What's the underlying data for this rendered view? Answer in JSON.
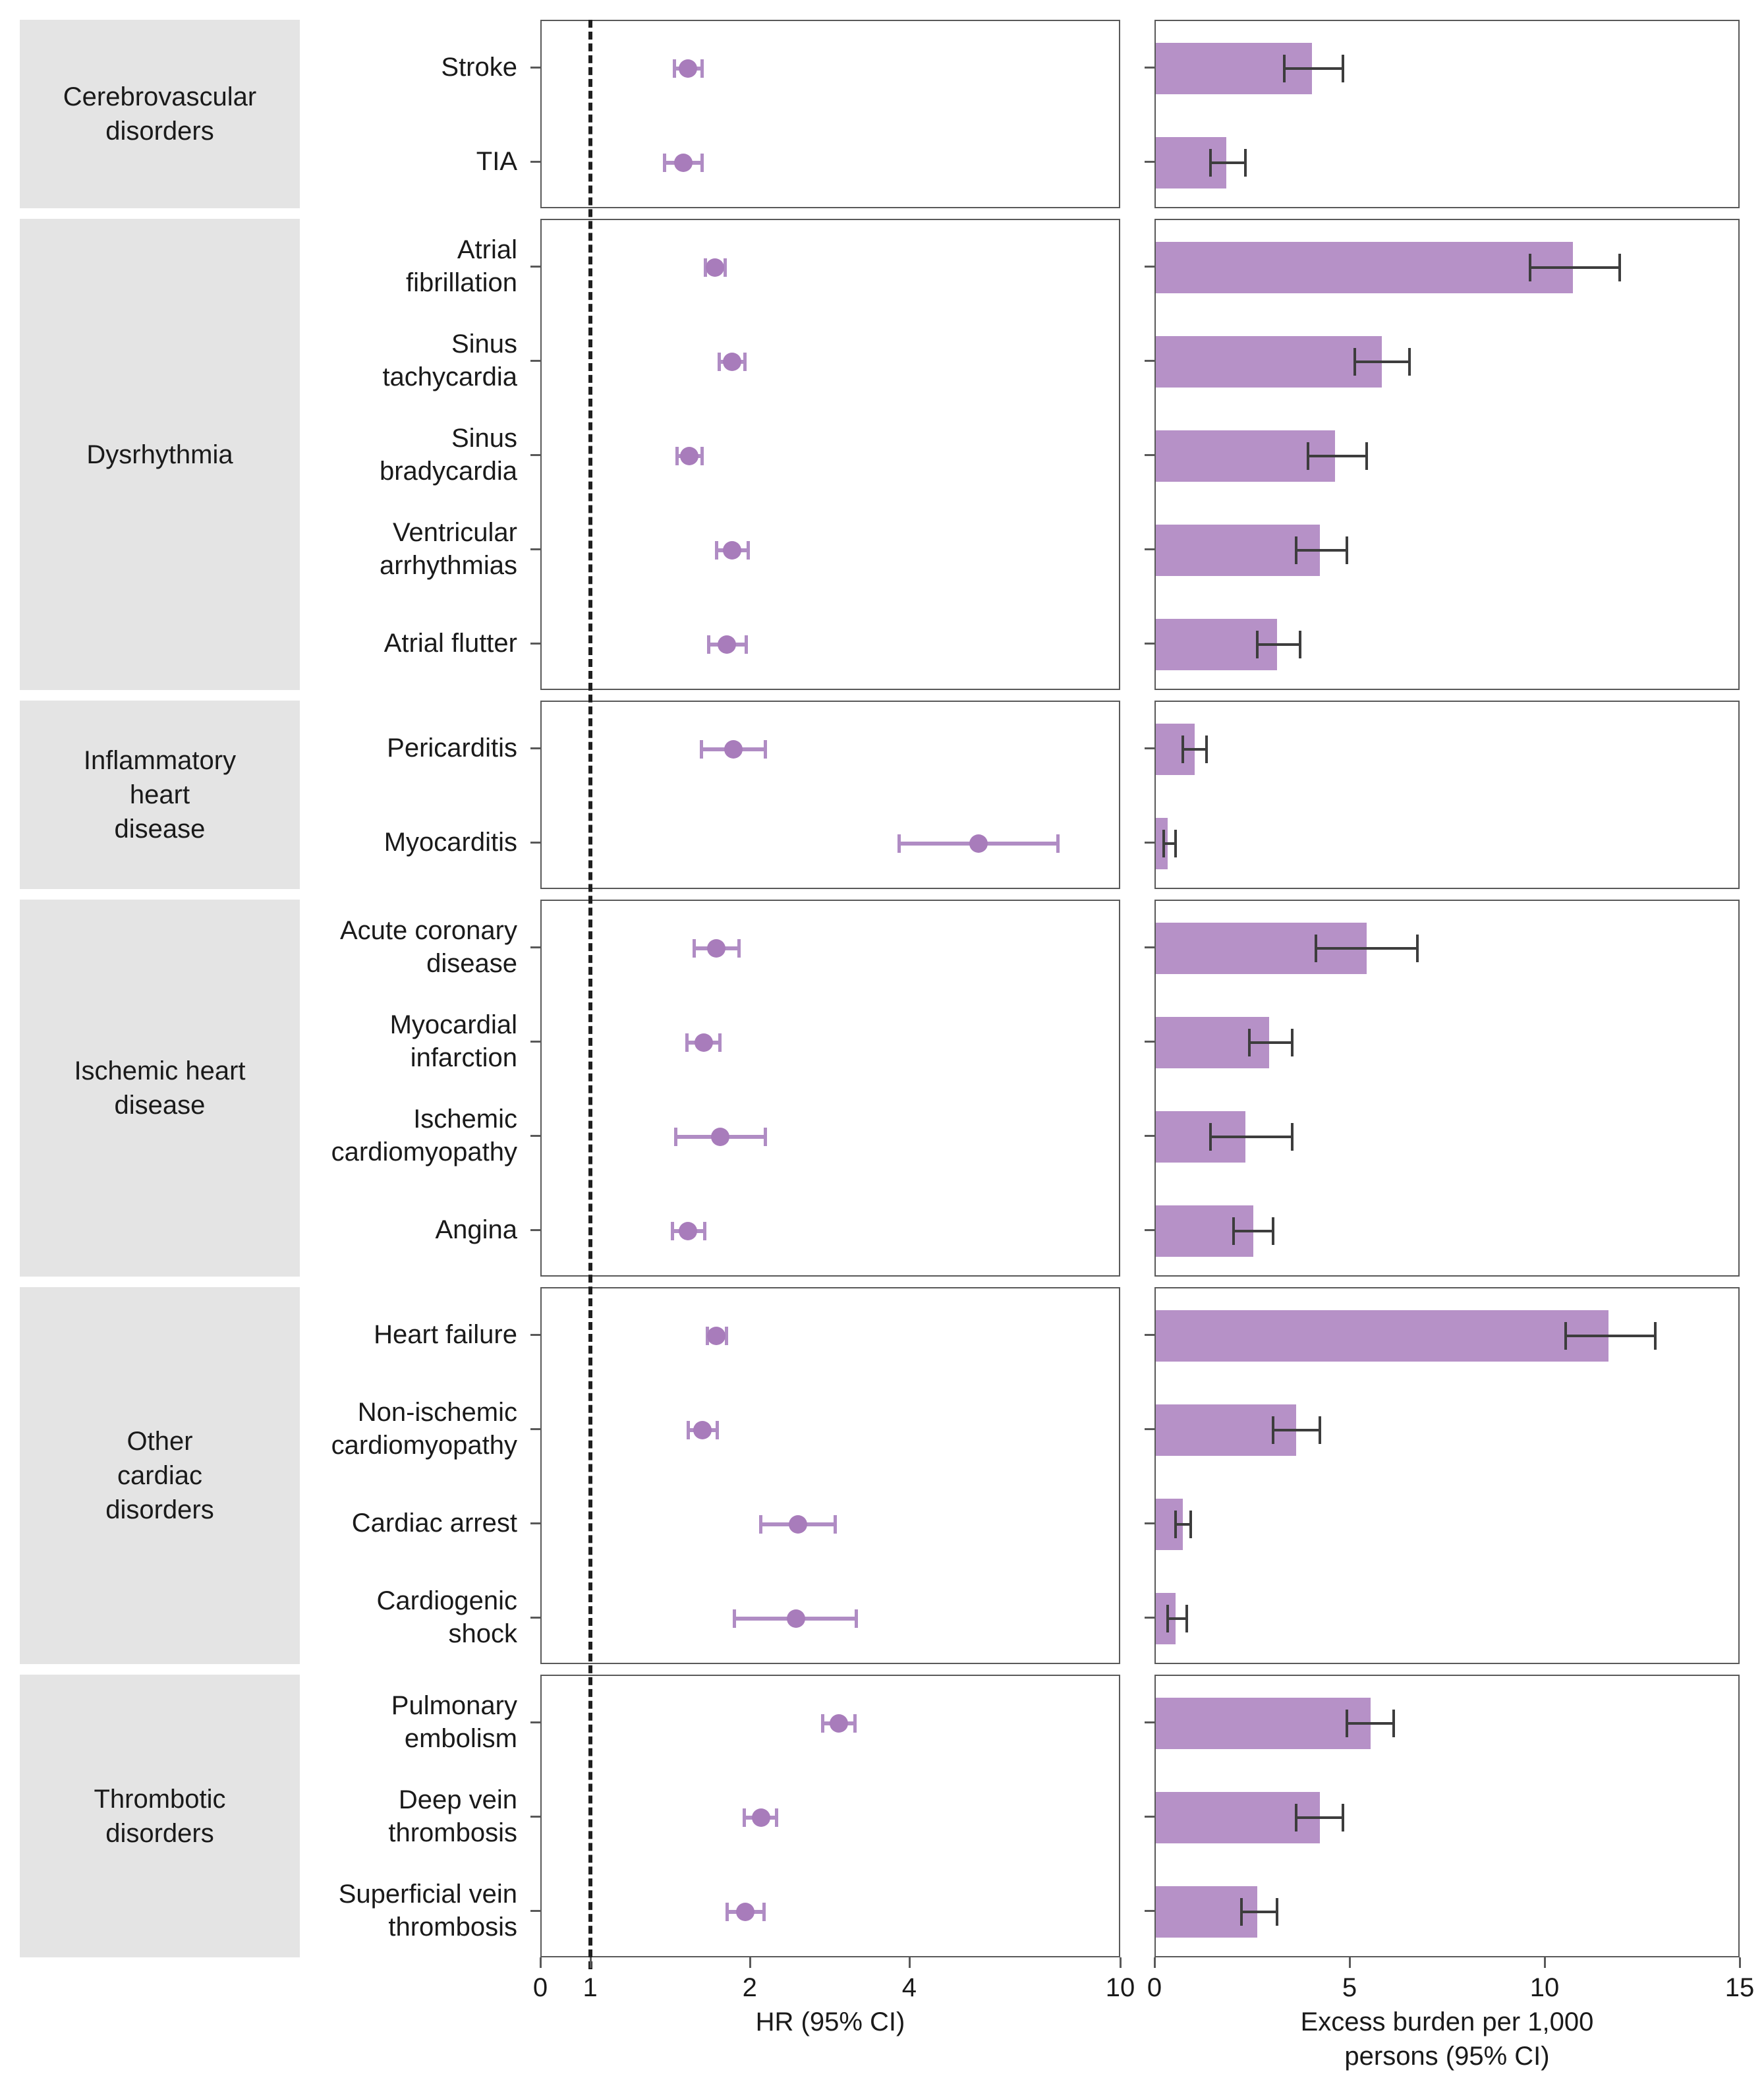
{
  "axes": {
    "hr": {
      "title": "HR (95% CI)",
      "ticks": [
        "0",
        "1",
        "2",
        "4",
        "10"
      ]
    },
    "burden": {
      "title": "Excess burden per 1,000\npersons (95% CI)",
      "ticks": [
        "0",
        "5",
        "10",
        "15"
      ]
    }
  },
  "colors": {
    "point": "#a87cbb",
    "ci": "#b08cc4",
    "bar": "#b691c7",
    "bar_error": "#3d3d3d",
    "panel_border": "#595959",
    "group_bg": "#e4e4e4",
    "reference_line": "#1f1f1f"
  },
  "chart_data": {
    "type": "forest+bar",
    "title": "",
    "hr_axis": {
      "scale": "log",
      "tick_values": [
        0,
        1,
        2,
        4,
        10
      ],
      "one_position_frac": 0.086,
      "reference_value": 1
    },
    "burden_axis": {
      "scale": "linear",
      "min": 0,
      "max": 15
    },
    "groups": [
      {
        "label": "Cerebrovascular\ndisorders",
        "outcomes": [
          {
            "name": "Stroke",
            "hr": 1.52,
            "hr_lo": 1.43,
            "hr_hi": 1.62,
            "burden": 4.0,
            "burden_lo": 3.3,
            "burden_hi": 4.8
          },
          {
            "name": "TIA",
            "hr": 1.49,
            "hr_lo": 1.37,
            "hr_hi": 1.62,
            "burden": 1.8,
            "burden_lo": 1.4,
            "burden_hi": 2.3
          }
        ]
      },
      {
        "label": "Dysrhythmia",
        "outcomes": [
          {
            "name": "Atrial\nfibrillation",
            "hr": 1.71,
            "hr_lo": 1.64,
            "hr_hi": 1.79,
            "burden": 10.7,
            "burden_lo": 9.6,
            "burden_hi": 11.9
          },
          {
            "name": "Sinus\ntachycardia",
            "hr": 1.84,
            "hr_lo": 1.74,
            "hr_hi": 1.95,
            "burden": 5.8,
            "burden_lo": 5.1,
            "burden_hi": 6.5
          },
          {
            "name": "Sinus\nbradycardia",
            "hr": 1.53,
            "hr_lo": 1.45,
            "hr_hi": 1.62,
            "burden": 4.6,
            "burden_lo": 3.9,
            "burden_hi": 5.4
          },
          {
            "name": "Ventricular\narrhythmias",
            "hr": 1.84,
            "hr_lo": 1.72,
            "hr_hi": 1.98,
            "burden": 4.2,
            "burden_lo": 3.6,
            "burden_hi": 4.9
          },
          {
            "name": "Atrial flutter",
            "hr": 1.8,
            "hr_lo": 1.66,
            "hr_hi": 1.96,
            "burden": 3.1,
            "burden_lo": 2.6,
            "burden_hi": 3.7
          }
        ]
      },
      {
        "label": "Inflammatory\nheart\ndisease",
        "outcomes": [
          {
            "name": "Pericarditis",
            "hr": 1.85,
            "hr_lo": 1.61,
            "hr_hi": 2.13,
            "burden": 1.0,
            "burden_lo": 0.7,
            "burden_hi": 1.3
          },
          {
            "name": "Myocarditis",
            "hr": 5.38,
            "hr_lo": 3.8,
            "hr_hi": 7.59,
            "burden": 0.3,
            "burden_lo": 0.2,
            "burden_hi": 0.5
          }
        ]
      },
      {
        "label": "Ischemic heart\ndisease",
        "outcomes": [
          {
            "name": "Acute coronary\ndisease",
            "hr": 1.72,
            "hr_lo": 1.56,
            "hr_hi": 1.9,
            "burden": 5.4,
            "burden_lo": 4.1,
            "burden_hi": 6.7
          },
          {
            "name": "Myocardial\ninfarction",
            "hr": 1.63,
            "hr_lo": 1.51,
            "hr_hi": 1.75,
            "burden": 2.9,
            "burden_lo": 2.4,
            "burden_hi": 3.5
          },
          {
            "name": "Ischemic\ncardiomyopathy",
            "hr": 1.75,
            "hr_lo": 1.44,
            "hr_hi": 2.13,
            "burden": 2.3,
            "burden_lo": 1.4,
            "burden_hi": 3.5
          },
          {
            "name": "Angina",
            "hr": 1.52,
            "hr_lo": 1.42,
            "hr_hi": 1.64,
            "burden": 2.5,
            "burden_lo": 2.0,
            "burden_hi": 3.0
          }
        ]
      },
      {
        "label": "Other\ncardiac\ndisorders",
        "outcomes": [
          {
            "name": "Heart failure",
            "hr": 1.72,
            "hr_lo": 1.65,
            "hr_hi": 1.8,
            "burden": 11.6,
            "burden_lo": 10.5,
            "burden_hi": 12.8
          },
          {
            "name": "Non-ischemic\ncardiomyopathy",
            "hr": 1.62,
            "hr_lo": 1.52,
            "hr_hi": 1.73,
            "burden": 3.6,
            "burden_lo": 3.0,
            "burden_hi": 4.2
          },
          {
            "name": "Cardiac arrest",
            "hr": 2.45,
            "hr_lo": 2.08,
            "hr_hi": 2.89,
            "burden": 0.7,
            "burden_lo": 0.5,
            "burden_hi": 0.9
          },
          {
            "name": "Cardiogenic\nshock",
            "hr": 2.43,
            "hr_lo": 1.86,
            "hr_hi": 3.16,
            "burden": 0.5,
            "burden_lo": 0.3,
            "burden_hi": 0.8
          }
        ]
      },
      {
        "label": "Thrombotic\ndisorders",
        "outcomes": [
          {
            "name": "Pulmonary\nembolism",
            "hr": 2.93,
            "hr_lo": 2.73,
            "hr_hi": 3.15,
            "burden": 5.5,
            "burden_lo": 4.9,
            "burden_hi": 6.1
          },
          {
            "name": "Deep vein\nthrombosis",
            "hr": 2.09,
            "hr_lo": 1.94,
            "hr_hi": 2.24,
            "burden": 4.2,
            "burden_lo": 3.6,
            "burden_hi": 4.8
          },
          {
            "name": "Superficial vein\nthrombosis",
            "hr": 1.95,
            "hr_lo": 1.8,
            "hr_hi": 2.12,
            "burden": 2.6,
            "burden_lo": 2.2,
            "burden_hi": 3.1
          }
        ]
      }
    ]
  }
}
